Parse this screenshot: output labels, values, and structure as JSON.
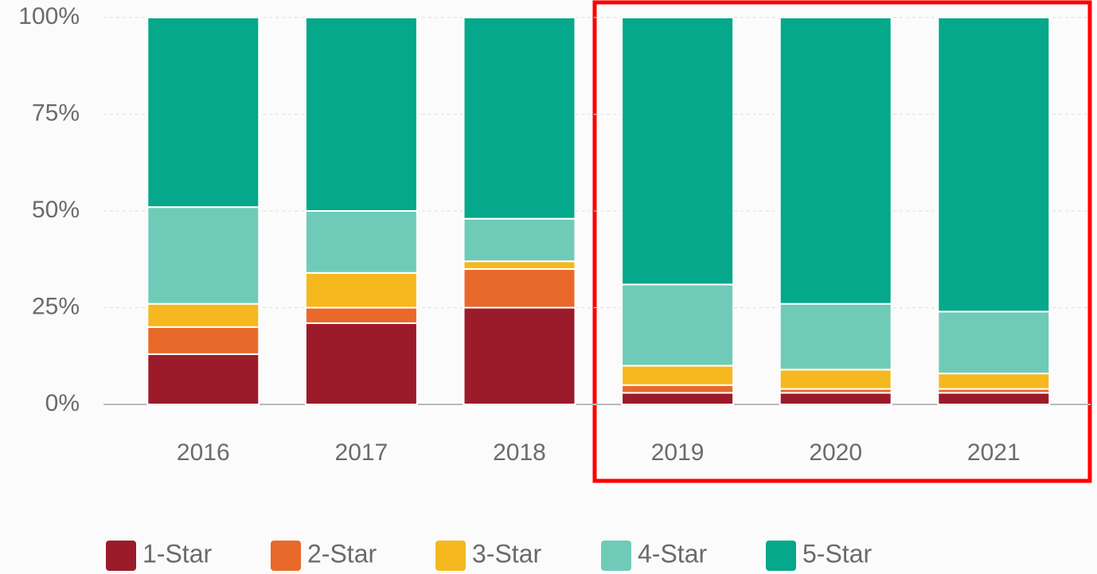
{
  "chart_data": {
    "type": "stacked_bar",
    "categories": [
      "2016",
      "2017",
      "2018",
      "2019",
      "2020",
      "2021"
    ],
    "series": [
      {
        "name": "1-Star",
        "color": "#9b1b2a",
        "values": [
          13,
          21,
          25,
          3,
          3,
          3
        ]
      },
      {
        "name": "2-Star",
        "color": "#e9692a",
        "values": [
          7,
          4,
          10,
          2,
          1,
          1
        ]
      },
      {
        "name": "3-Star",
        "color": "#f6b81f",
        "values": [
          6,
          9,
          2,
          5,
          5,
          4
        ]
      },
      {
        "name": "4-Star",
        "color": "#6fcbb8",
        "values": [
          25,
          16,
          11,
          21,
          17,
          16
        ]
      },
      {
        "name": "5-Star",
        "color": "#05a88a",
        "values": [
          49,
          50,
          52,
          69,
          74,
          76
        ]
      }
    ],
    "ylim": [
      0,
      100
    ],
    "yticks": [
      {
        "value": 0,
        "label": "0%"
      },
      {
        "value": 25,
        "label": "25%"
      },
      {
        "value": 50,
        "label": "50%"
      },
      {
        "value": 75,
        "label": "75%"
      },
      {
        "value": 100,
        "label": "100%"
      }
    ],
    "grid": true,
    "legend": "bottom"
  }
}
